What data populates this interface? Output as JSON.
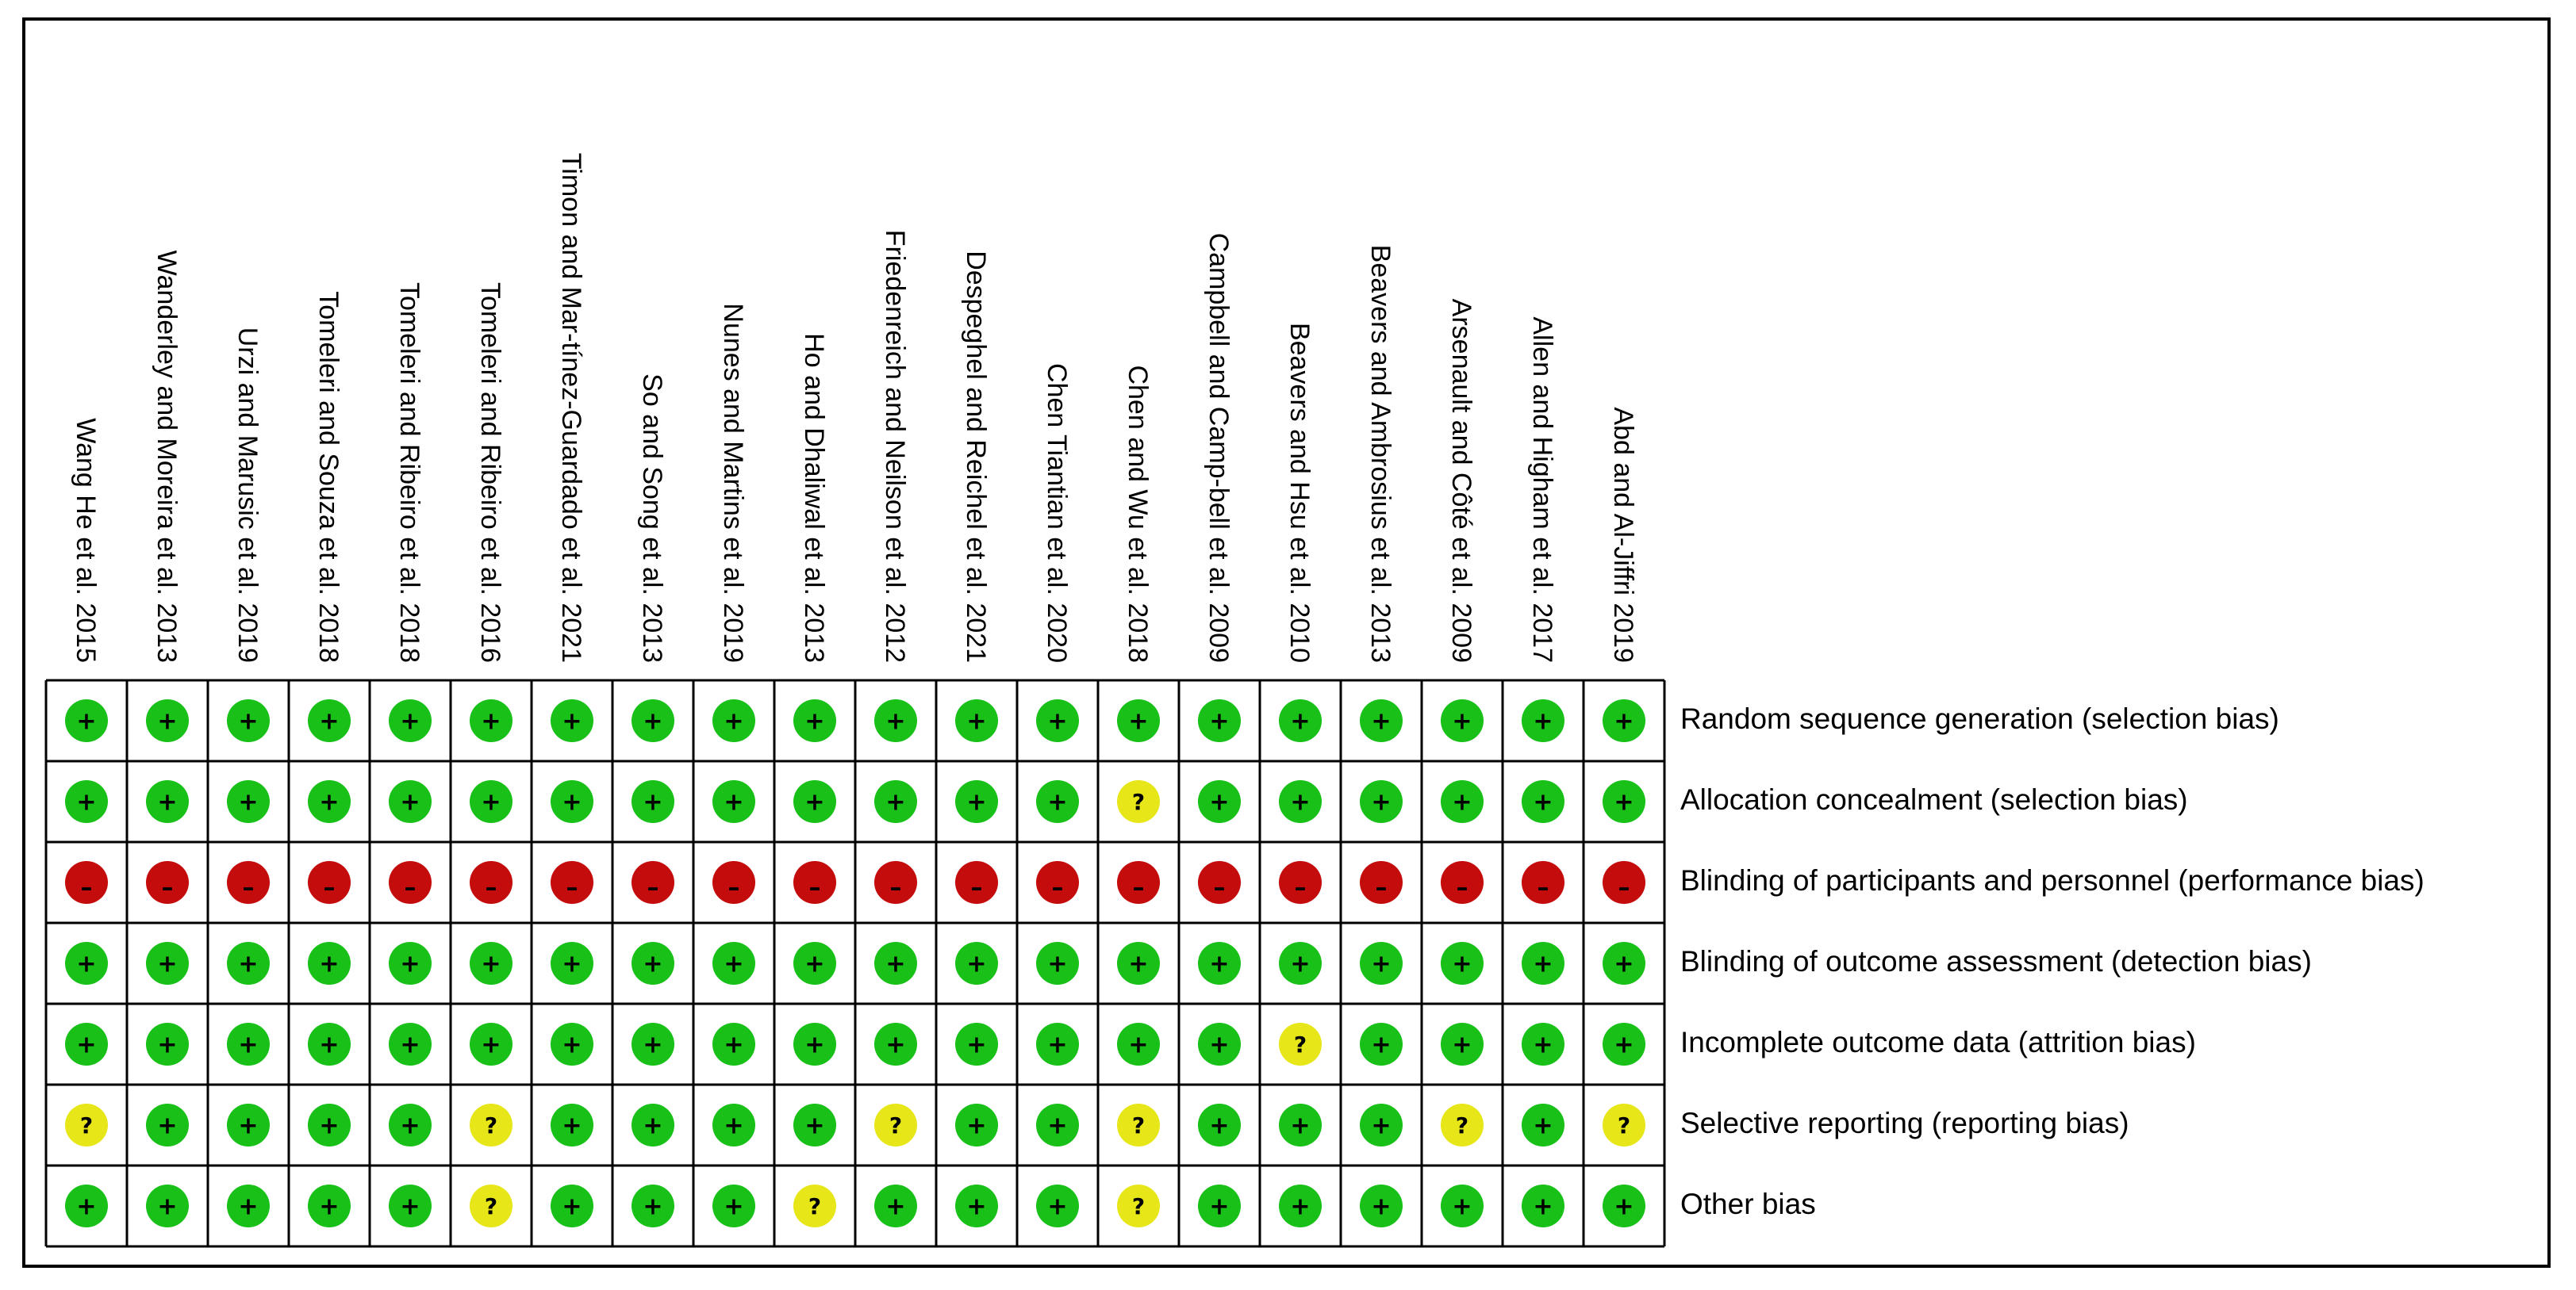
{
  "colors": {
    "low": "#18c018",
    "unclear": "#e6e619",
    "high": "#c40c0c",
    "border": "#000000",
    "background": "#ffffff"
  },
  "symbols": {
    "low": "+",
    "unclear": "?",
    "high": "–"
  },
  "chart_data": {
    "type": "table",
    "studies": [
      "Wang He et al. 2015",
      "Wanderley and Moreira et al. 2013",
      "Urzi and Marusic et al. 2019",
      "Tomeleri and Souza et al. 2018",
      "Tomeleri and Ribeiro et al. 2018",
      "Tomeleri and Ribeiro et al. 2016",
      "Timon and Mar-tínez-Guardado et al. 2021",
      "So and Song et al. 2013",
      "Nunes and Martins et al. 2019",
      "Ho and Dhaliwal et al. 2013",
      "Friedenreich and Neilson et al. 2012",
      "Despeghel and Reichel et al. 2021",
      "Chen Tiantian et al. 2020",
      "Chen and Wu et al. 2018",
      "Campbell and Camp-bell et al. 2009",
      "Beavers and Hsu et al. 2010",
      "Beavers and Ambrosius et al. 2013",
      "Arsenault and Côté et al. 2009",
      "Allen and Higham et al. 2017",
      "Abd and Al-Jiffri 2019"
    ],
    "domains": [
      "Random sequence generation (selection bias)",
      "Allocation concealment (selection bias)",
      "Blinding of participants and personnel (performance bias)",
      "Blinding of outcome assessment (detection bias)",
      "Incomplete outcome data (attrition bias)",
      "Selective reporting (reporting bias)",
      "Other bias"
    ],
    "judgements": [
      [
        "low",
        "low",
        "low",
        "low",
        "low",
        "low",
        "low",
        "low",
        "low",
        "low",
        "low",
        "low",
        "low",
        "low",
        "low",
        "low",
        "low",
        "low",
        "low",
        "low"
      ],
      [
        "low",
        "low",
        "low",
        "low",
        "low",
        "low",
        "low",
        "low",
        "low",
        "low",
        "low",
        "low",
        "low",
        "unclear",
        "low",
        "low",
        "low",
        "low",
        "low",
        "low"
      ],
      [
        "high",
        "high",
        "high",
        "high",
        "high",
        "high",
        "high",
        "high",
        "high",
        "high",
        "high",
        "high",
        "high",
        "high",
        "high",
        "high",
        "high",
        "high",
        "high",
        "high"
      ],
      [
        "low",
        "low",
        "low",
        "low",
        "low",
        "low",
        "low",
        "low",
        "low",
        "low",
        "low",
        "low",
        "low",
        "low",
        "low",
        "low",
        "low",
        "low",
        "low",
        "low"
      ],
      [
        "low",
        "low",
        "low",
        "low",
        "low",
        "low",
        "low",
        "low",
        "low",
        "low",
        "low",
        "low",
        "low",
        "low",
        "low",
        "unclear",
        "low",
        "low",
        "low",
        "low"
      ],
      [
        "unclear",
        "low",
        "low",
        "low",
        "low",
        "unclear",
        "low",
        "low",
        "low",
        "low",
        "unclear",
        "low",
        "low",
        "unclear",
        "low",
        "low",
        "low",
        "unclear",
        "low",
        "unclear"
      ],
      [
        "low",
        "low",
        "low",
        "low",
        "low",
        "unclear",
        "low",
        "low",
        "low",
        "unclear",
        "low",
        "low",
        "low",
        "unclear",
        "low",
        "low",
        "low",
        "low",
        "low",
        "low"
      ]
    ]
  }
}
